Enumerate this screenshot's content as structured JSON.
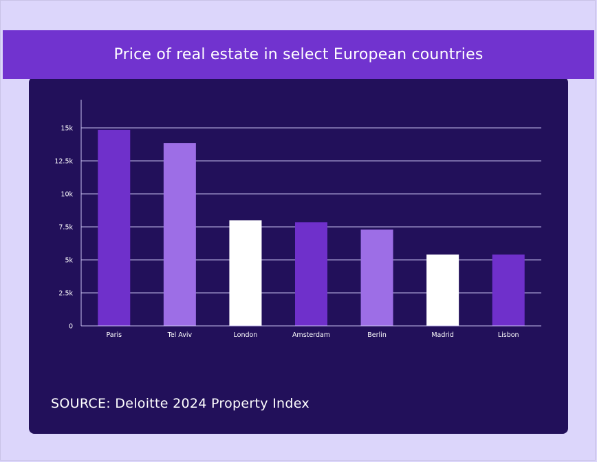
{
  "header": {
    "title": "Price of real estate in select European countries"
  },
  "footer": {
    "source": "SOURCE: Deloitte 2024 Property Index"
  },
  "colors": {
    "background": "#dcd6fb",
    "card": "#22105a",
    "banner": "#7133cf",
    "gridline": "#c8bff0",
    "series_palette": [
      "#6f30cb",
      "#9d6ee6",
      "#ffffff"
    ]
  },
  "chart_data": {
    "type": "bar",
    "categories": [
      "Paris",
      "Tel Aviv",
      "London",
      "Amsterdam",
      "Berlin",
      "Madrid",
      "Lisbon"
    ],
    "values": [
      14850,
      13850,
      8000,
      7850,
      7300,
      5400,
      5400
    ],
    "bar_colors": [
      "#6f30cb",
      "#9d6ee6",
      "#ffffff",
      "#6f30cb",
      "#9d6ee6",
      "#ffffff",
      "#6f30cb"
    ],
    "yticks": [
      0,
      2500,
      5000,
      7500,
      10000,
      12500,
      15000
    ],
    "ytick_labels": [
      "0",
      "2.5k",
      "5k",
      "7.5k",
      "10k",
      "12.5k",
      "15k"
    ],
    "ylim": [
      0,
      17000
    ],
    "title": "",
    "xlabel": "",
    "ylabel": "",
    "grid": true,
    "legend": "none"
  }
}
